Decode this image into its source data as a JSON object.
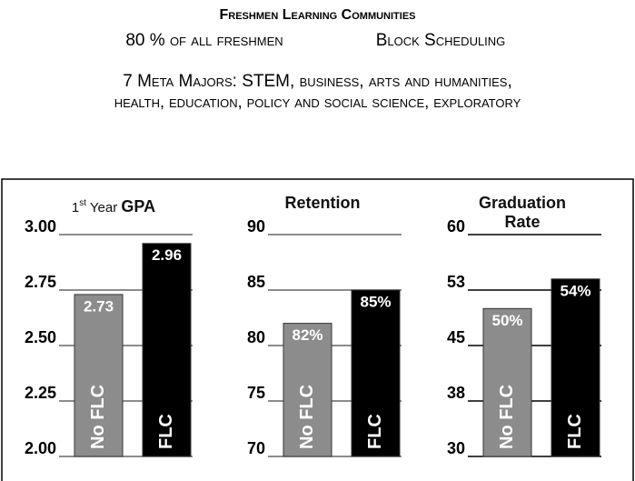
{
  "header": {
    "title": "Freshmen Learning Communities",
    "facts": [
      "80 % of all freshmen",
      "Block Scheduling"
    ],
    "majors_lines": [
      "7 Meta Majors: STEM, business, arts and humanities,",
      "health, education, policy and social science, exploratory"
    ]
  },
  "chart_data": [
    {
      "type": "bar",
      "title_parts": [
        {
          "text": "1"
        },
        {
          "text": "st",
          "sup": true
        },
        {
          "text": " Year "
        },
        {
          "text": "GPA",
          "bold": true
        }
      ],
      "categories": [
        "No FLC",
        "FLC"
      ],
      "values": [
        2.73,
        2.96
      ],
      "colors": [
        "#8c8c8c",
        "#000000"
      ],
      "ylim": [
        2,
        3
      ],
      "yticks": [
        {
          "value": 2,
          "label": "2.00"
        },
        {
          "value": 2.25,
          "label": "2.25"
        },
        {
          "value": 2.5,
          "label": "2.50"
        },
        {
          "value": 2.75,
          "label": "2.75"
        },
        {
          "value": 3,
          "label": "3.00"
        }
      ],
      "grid": true,
      "grid_color": "#666666"
    },
    {
      "type": "bar",
      "title_parts": [
        {
          "text": "Retention",
          "bold": true
        }
      ],
      "categories": [
        "No FLC",
        "FLC"
      ],
      "values": [
        82,
        85
      ],
      "value_labels": [
        "82%",
        "85%"
      ],
      "colors": [
        "#8c8c8c",
        "#000000"
      ],
      "ylim": [
        70,
        90
      ],
      "yticks": [
        70,
        75,
        80,
        85,
        90
      ],
      "grid": true,
      "grid_color": "#666666"
    },
    {
      "type": "bar",
      "title_parts": [
        {
          "text": "Graduation Rate",
          "bold": true
        }
      ],
      "categories": [
        "No FLC",
        "FLC"
      ],
      "values": [
        50,
        54
      ],
      "value_labels": [
        "50%",
        "54%"
      ],
      "colors": [
        "#8c8c8c",
        "#000000"
      ],
      "ylim": [
        30,
        60
      ],
      "yticks": [
        30,
        {
          "value": 37.5,
          "label": "38"
        },
        45,
        {
          "value": 52.5,
          "label": "53"
        },
        60
      ],
      "grid": true,
      "grid_color": "#000000"
    }
  ]
}
